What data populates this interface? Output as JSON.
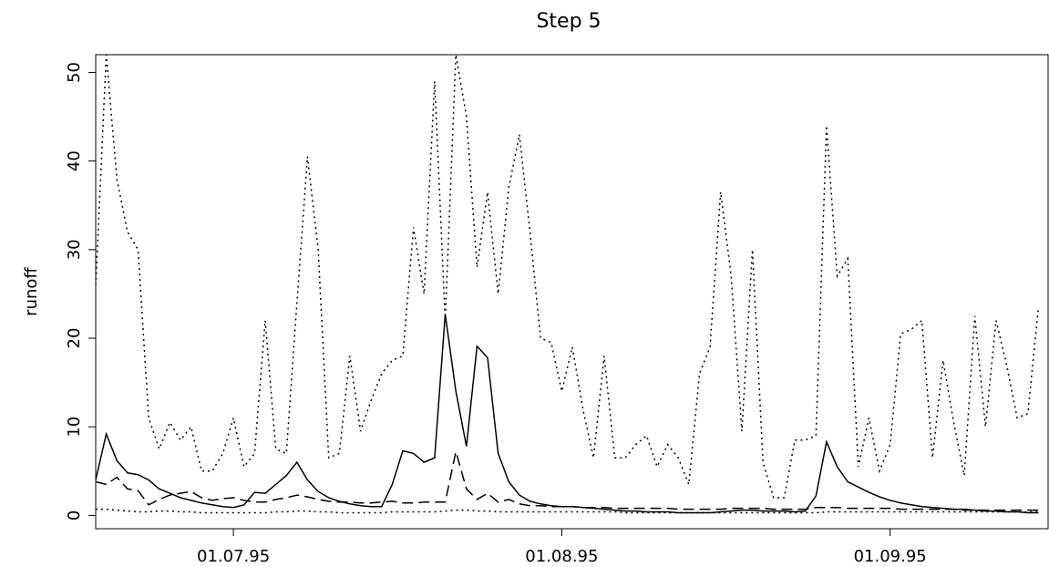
{
  "chart_data": {
    "type": "line",
    "title": "Step 5",
    "y_label": "runoff",
    "x": [
      "1995-06-18",
      "1995-06-19",
      "1995-06-20",
      "1995-06-21",
      "1995-06-22",
      "1995-06-23",
      "1995-06-24",
      "1995-06-25",
      "1995-06-26",
      "1995-06-27",
      "1995-06-28",
      "1995-06-29",
      "1995-06-30",
      "1995-07-01",
      "1995-07-02",
      "1995-07-03",
      "1995-07-04",
      "1995-07-05",
      "1995-07-06",
      "1995-07-07",
      "1995-07-08",
      "1995-07-09",
      "1995-07-10",
      "1995-07-11",
      "1995-07-12",
      "1995-07-13",
      "1995-07-14",
      "1995-07-15",
      "1995-07-16",
      "1995-07-17",
      "1995-07-18",
      "1995-07-19",
      "1995-07-20",
      "1995-07-21",
      "1995-07-22",
      "1995-07-23",
      "1995-07-24",
      "1995-07-25",
      "1995-07-26",
      "1995-07-27",
      "1995-07-28",
      "1995-07-29",
      "1995-07-30",
      "1995-07-31",
      "1995-08-01",
      "1995-08-02",
      "1995-08-03",
      "1995-08-04",
      "1995-08-05",
      "1995-08-06",
      "1995-08-07",
      "1995-08-08",
      "1995-08-09",
      "1995-08-10",
      "1995-08-11",
      "1995-08-12",
      "1995-08-13",
      "1995-08-14",
      "1995-08-15",
      "1995-08-16",
      "1995-08-17",
      "1995-08-18",
      "1995-08-19",
      "1995-08-20",
      "1995-08-21",
      "1995-08-22",
      "1995-08-23",
      "1995-08-24",
      "1995-08-25",
      "1995-08-26",
      "1995-08-27",
      "1995-08-28",
      "1995-08-29",
      "1995-08-30",
      "1995-08-31",
      "1995-09-01",
      "1995-09-02",
      "1995-09-03",
      "1995-09-04",
      "1995-09-05",
      "1995-09-06",
      "1995-09-07",
      "1995-09-08",
      "1995-09-09",
      "1995-09-10",
      "1995-09-11",
      "1995-09-12",
      "1995-09-13",
      "1995-09-14",
      "1995-09-15"
    ],
    "series": [
      {
        "color": "#000000",
        "linestyle": "dotted",
        "values": [
          26,
          52,
          38,
          32,
          30,
          11,
          7.5,
          10.5,
          8.5,
          10,
          5,
          5,
          7,
          11,
          5.5,
          7,
          22,
          7.5,
          7,
          24,
          40.5,
          30,
          6.5,
          7,
          18,
          9.5,
          13,
          16,
          17.5,
          18,
          32.5,
          25,
          49,
          22,
          52,
          45,
          28,
          36.5,
          25,
          37,
          43,
          32,
          20,
          19.5,
          14,
          19,
          12,
          6.5,
          18,
          6.5,
          6.5,
          8,
          9,
          5.5,
          8,
          6.5,
          3.5,
          16,
          19,
          36.5,
          27,
          9.5,
          30,
          6,
          2,
          2,
          8.5,
          8.5,
          9,
          44,
          27,
          29,
          5.5,
          11,
          5,
          8,
          20.5,
          21,
          22,
          6.5,
          17.5,
          10.5,
          4.5,
          22.5,
          10,
          22,
          17,
          11,
          11.5,
          23.5
        ]
      },
      {
        "color": "#000000",
        "linestyle": "solid",
        "values": [
          4,
          9.2,
          6.2,
          4.8,
          4.6,
          4.0,
          3.0,
          2.5,
          2.0,
          1.7,
          1.4,
          1.2,
          1.0,
          0.9,
          1.2,
          2.6,
          2.5,
          3.5,
          4.5,
          6.0,
          4.0,
          2.7,
          2.0,
          1.6,
          1.3,
          1.1,
          1.0,
          1.0,
          3.5,
          7.3,
          7.0,
          6.0,
          6.5,
          22.7,
          14,
          7.8,
          19.1,
          17.8,
          7.0,
          3.8,
          2.3,
          1.6,
          1.3,
          1.1,
          1.0,
          1.0,
          0.9,
          0.8,
          0.7,
          0.6,
          0.5,
          0.5,
          0.4,
          0.4,
          0.4,
          0.3,
          0.3,
          0.3,
          0.3,
          0.4,
          0.5,
          0.6,
          0.6,
          0.5,
          0.5,
          0.5,
          0.4,
          0.5,
          2.2,
          8.3,
          5.5,
          3.8,
          3.2,
          2.6,
          2.1,
          1.7,
          1.4,
          1.2,
          1.0,
          0.9,
          0.8,
          0.7,
          0.7,
          0.6,
          0.5,
          0.5,
          0.4,
          0.4,
          0.3,
          0.3
        ]
      },
      {
        "color": "#000000",
        "linestyle": "dashed",
        "values": [
          3.8,
          3.5,
          4.3,
          3.0,
          2.8,
          1.2,
          1.8,
          2.3,
          2.5,
          2.7,
          2.0,
          1.7,
          1.9,
          2.0,
          1.7,
          1.5,
          1.5,
          1.8,
          2.0,
          2.3,
          2.1,
          1.8,
          1.6,
          1.5,
          1.5,
          1.4,
          1.4,
          1.5,
          1.6,
          1.4,
          1.4,
          1.5,
          1.5,
          1.5,
          7.2,
          3.0,
          1.8,
          2.5,
          1.5,
          1.8,
          1.3,
          1.1,
          1.1,
          1.0,
          1.0,
          1.0,
          0.9,
          0.9,
          0.9,
          0.8,
          0.8,
          0.8,
          0.8,
          0.8,
          0.8,
          0.7,
          0.7,
          0.7,
          0.7,
          0.7,
          0.8,
          0.8,
          0.8,
          0.8,
          0.7,
          0.7,
          0.7,
          0.7,
          0.9,
          0.9,
          0.9,
          0.8,
          0.8,
          0.8,
          0.8,
          0.8,
          0.7,
          0.7,
          0.7,
          0.7,
          0.7,
          0.7,
          0.6,
          0.6,
          0.6,
          0.6,
          0.6,
          0.6,
          0.6,
          0.6
        ]
      },
      {
        "color": "#000000",
        "linestyle": "dotted",
        "values": [
          0.7,
          0.7,
          0.6,
          0.5,
          0.4,
          0.4,
          0.5,
          0.5,
          0.4,
          0.4,
          0.3,
          0.3,
          0.3,
          0.3,
          0.3,
          0.3,
          0.3,
          0.4,
          0.4,
          0.5,
          0.5,
          0.4,
          0.4,
          0.3,
          0.3,
          0.3,
          0.3,
          0.3,
          0.4,
          0.4,
          0.4,
          0.4,
          0.4,
          0.5,
          0.6,
          0.6,
          0.5,
          0.5,
          0.4,
          0.4,
          0.4,
          0.4,
          0.4,
          0.4,
          0.4,
          0.4,
          0.4,
          0.4,
          0.4,
          0.4,
          0.3,
          0.3,
          0.3,
          0.3,
          0.3,
          0.3,
          0.3,
          0.3,
          0.3,
          0.3,
          0.3,
          0.3,
          0.3,
          0.3,
          0.3,
          0.3,
          0.3,
          0.3,
          0.3,
          0.4,
          0.4,
          0.4,
          0.4,
          0.4,
          0.4,
          0.4,
          0.4,
          0.4,
          0.4,
          0.4,
          0.4,
          0.4,
          0.4,
          0.4,
          0.4,
          0.4,
          0.4,
          0.4,
          0.4,
          0.4
        ]
      }
    ],
    "xlim": [
      "1995-06-18",
      "1995-09-16"
    ],
    "xticks": [
      {
        "value": "1995-07-01",
        "label": "01.07.95"
      },
      {
        "value": "1995-08-01",
        "label": "01.08.95"
      },
      {
        "value": "1995-09-01",
        "label": "01.09.95"
      }
    ],
    "ylim": [
      -1.5,
      52
    ],
    "yticks": [
      0,
      10,
      20,
      30,
      40,
      50
    ],
    "grid": false
  }
}
